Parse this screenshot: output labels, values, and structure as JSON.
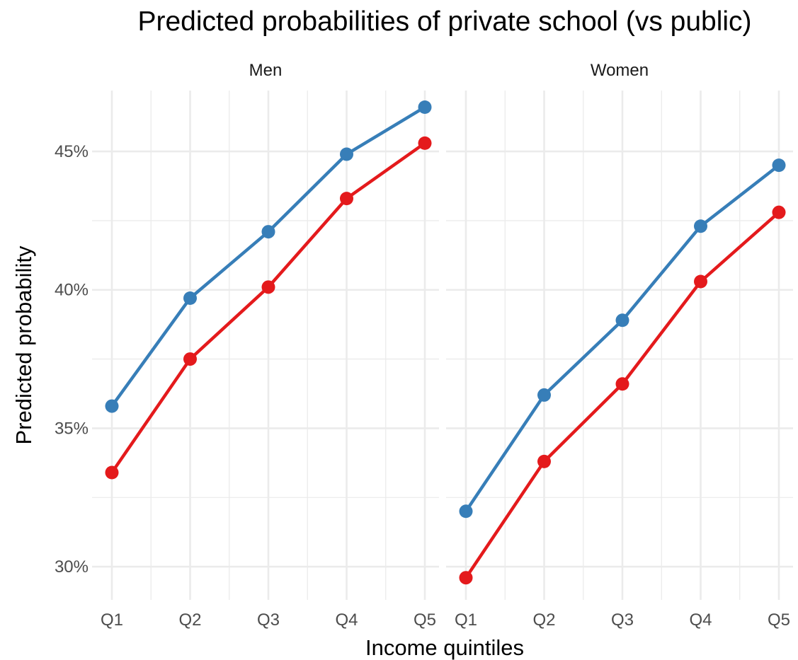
{
  "chart_data": {
    "type": "line",
    "title": "Predicted probabilities of private school (vs public)",
    "xlabel": "Income quintiles",
    "ylabel": "Predicted probability",
    "categories": [
      "Q1",
      "Q2",
      "Q3",
      "Q4",
      "Q5"
    ],
    "y_ticks": [
      {
        "value": 0.3,
        "label": "30%"
      },
      {
        "value": 0.35,
        "label": "35%"
      },
      {
        "value": 0.4,
        "label": "40%"
      },
      {
        "value": 0.45,
        "label": "45%"
      }
    ],
    "ylim": [
      0.288,
      0.472
    ],
    "grid": true,
    "legend": "none",
    "panels": [
      {
        "label": "Men",
        "series": [
          {
            "color": "#377EB8",
            "values": [
              0.358,
              0.397,
              0.421,
              0.449,
              0.466
            ]
          },
          {
            "color": "#E41A1C",
            "values": [
              0.334,
              0.375,
              0.401,
              0.433,
              0.453
            ]
          }
        ]
      },
      {
        "label": "Women",
        "series": [
          {
            "color": "#377EB8",
            "values": [
              0.32,
              0.362,
              0.389,
              0.423,
              0.445
            ]
          },
          {
            "color": "#E41A1C",
            "values": [
              0.296,
              0.338,
              0.366,
              0.403,
              0.428
            ]
          }
        ]
      }
    ]
  }
}
